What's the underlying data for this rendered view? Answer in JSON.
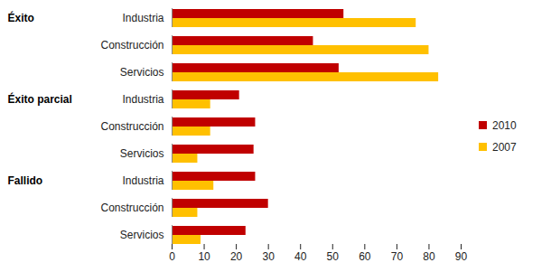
{
  "chart_data": {
    "type": "bar",
    "orientation": "horizontal",
    "categories": [
      "Industria",
      "Construcción",
      "Servicios",
      "Industria",
      "Construcción",
      "Servicios",
      "Industria",
      "Construcción",
      "Servicios"
    ],
    "category_groups": [
      "Éxito",
      "Éxito",
      "Éxito",
      "Éxito parcial",
      "Éxito parcial",
      "Éxito parcial",
      "Fallido",
      "Fallido",
      "Fallido"
    ],
    "series": [
      {
        "name": "2010",
        "color": "#c00000",
        "values": [
          53.5,
          44,
          52,
          21,
          26,
          25.5,
          26,
          30,
          23
        ]
      },
      {
        "name": "2007",
        "color": "#ffc000",
        "values": [
          76,
          80,
          83,
          12,
          12,
          8,
          13,
          8,
          9
        ]
      }
    ],
    "xlim": [
      0,
      90
    ],
    "xticks": [
      0,
      10,
      20,
      30,
      40,
      50,
      60,
      70,
      80,
      90
    ],
    "grid": false,
    "legend": "right"
  }
}
